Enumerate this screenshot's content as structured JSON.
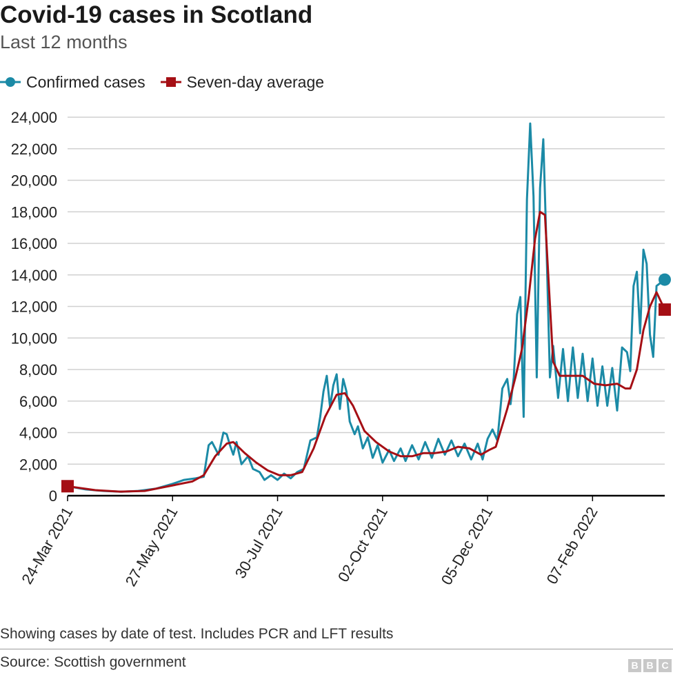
{
  "header": {
    "title": "Covid-19 cases in Scotland",
    "subtitle": "Last 12 months"
  },
  "footer": {
    "note": "Showing cases by date of test. Includes PCR and LFT results",
    "source": "Source: Scottish government",
    "logo_text": "BBC",
    "logo_letters": [
      "B",
      "B",
      "C"
    ]
  },
  "colors": {
    "confirmed": "#1b8aa6",
    "average": "#a50f15",
    "grid": "#d0d0d0",
    "axis": "#000000"
  },
  "chart_data": {
    "type": "line",
    "title": "Covid-19 cases in Scotland",
    "subtitle": "Last 12 months",
    "xlabel": "",
    "ylabel": "",
    "xlim": [
      "2021-03-24",
      "2022-03-23"
    ],
    "ylim": [
      0,
      24000
    ],
    "grid": true,
    "legend_position": "top-left",
    "y_ticks": [
      0,
      2000,
      4000,
      6000,
      8000,
      10000,
      12000,
      14000,
      16000,
      18000,
      20000,
      22000,
      24000
    ],
    "y_tick_labels": [
      "0",
      "2,000",
      "4,000",
      "6,000",
      "8,000",
      "10,000",
      "12,000",
      "14,000",
      "16,000",
      "18,000",
      "20,000",
      "22,000",
      "24,000"
    ],
    "x_ticks": [
      "2021-03-24",
      "2021-05-27",
      "2021-07-30",
      "2021-10-02",
      "2021-12-05",
      "2022-02-07"
    ],
    "x_tick_labels": [
      "24-Mar 2021",
      "27-May 2021",
      "30-Jul 2021",
      "02-Oct 2021",
      "05-Dec 2021",
      "07-Feb 2022"
    ],
    "series": [
      {
        "name": "Confirmed cases",
        "marker": "circle",
        "points": [
          [
            "2021-03-24",
            600
          ],
          [
            "2021-04-04",
            400
          ],
          [
            "2021-04-15",
            300
          ],
          [
            "2021-04-26",
            250
          ],
          [
            "2021-05-06",
            300
          ],
          [
            "2021-05-17",
            450
          ],
          [
            "2021-05-27",
            750
          ],
          [
            "2021-06-03",
            1000
          ],
          [
            "2021-06-10",
            1100
          ],
          [
            "2021-06-15",
            1200
          ],
          [
            "2021-06-18",
            3200
          ],
          [
            "2021-06-20",
            3400
          ],
          [
            "2021-06-24",
            2600
          ],
          [
            "2021-06-27",
            4000
          ],
          [
            "2021-06-29",
            3900
          ],
          [
            "2021-07-01",
            3200
          ],
          [
            "2021-07-03",
            2600
          ],
          [
            "2021-07-05",
            3400
          ],
          [
            "2021-07-08",
            2000
          ],
          [
            "2021-07-12",
            2500
          ],
          [
            "2021-07-15",
            1700
          ],
          [
            "2021-07-19",
            1500
          ],
          [
            "2021-07-22",
            1000
          ],
          [
            "2021-07-26",
            1300
          ],
          [
            "2021-07-30",
            1000
          ],
          [
            "2021-08-03",
            1400
          ],
          [
            "2021-08-07",
            1100
          ],
          [
            "2021-08-11",
            1500
          ],
          [
            "2021-08-15",
            1700
          ],
          [
            "2021-08-19",
            3500
          ],
          [
            "2021-08-23",
            3700
          ],
          [
            "2021-08-25",
            5000
          ],
          [
            "2021-08-27",
            6600
          ],
          [
            "2021-08-29",
            7600
          ],
          [
            "2021-08-31",
            5600
          ],
          [
            "2021-09-02",
            7000
          ],
          [
            "2021-09-04",
            7700
          ],
          [
            "2021-09-06",
            5500
          ],
          [
            "2021-09-08",
            7400
          ],
          [
            "2021-09-10",
            6600
          ],
          [
            "2021-09-12",
            4700
          ],
          [
            "2021-09-15",
            3900
          ],
          [
            "2021-09-17",
            4400
          ],
          [
            "2021-09-20",
            3000
          ],
          [
            "2021-09-23",
            3700
          ],
          [
            "2021-09-26",
            2400
          ],
          [
            "2021-09-29",
            3200
          ],
          [
            "2021-10-02",
            2100
          ],
          [
            "2021-10-06",
            2900
          ],
          [
            "2021-10-09",
            2200
          ],
          [
            "2021-10-13",
            3000
          ],
          [
            "2021-10-16",
            2200
          ],
          [
            "2021-10-20",
            3200
          ],
          [
            "2021-10-24",
            2300
          ],
          [
            "2021-10-28",
            3400
          ],
          [
            "2021-11-01",
            2400
          ],
          [
            "2021-11-05",
            3600
          ],
          [
            "2021-11-09",
            2600
          ],
          [
            "2021-11-13",
            3500
          ],
          [
            "2021-11-17",
            2500
          ],
          [
            "2021-11-21",
            3300
          ],
          [
            "2021-11-25",
            2300
          ],
          [
            "2021-11-29",
            3300
          ],
          [
            "2021-12-02",
            2300
          ],
          [
            "2021-12-05",
            3600
          ],
          [
            "2021-12-08",
            4200
          ],
          [
            "2021-12-11",
            3500
          ],
          [
            "2021-12-14",
            6800
          ],
          [
            "2021-12-17",
            7400
          ],
          [
            "2021-12-19",
            5800
          ],
          [
            "2021-12-21",
            7500
          ],
          [
            "2021-12-23",
            11500
          ],
          [
            "2021-12-25",
            12600
          ],
          [
            "2021-12-27",
            5000
          ],
          [
            "2021-12-29",
            18800
          ],
          [
            "2021-12-31",
            23600
          ],
          [
            "2022-01-02",
            19000
          ],
          [
            "2022-01-04",
            7500
          ],
          [
            "2022-01-06",
            19500
          ],
          [
            "2022-01-08",
            22600
          ],
          [
            "2022-01-10",
            15500
          ],
          [
            "2022-01-12",
            7500
          ],
          [
            "2022-01-14",
            9500
          ],
          [
            "2022-01-17",
            6200
          ],
          [
            "2022-01-20",
            9300
          ],
          [
            "2022-01-23",
            6000
          ],
          [
            "2022-01-26",
            9400
          ],
          [
            "2022-01-29",
            6200
          ],
          [
            "2022-02-01",
            9000
          ],
          [
            "2022-02-04",
            6000
          ],
          [
            "2022-02-07",
            8700
          ],
          [
            "2022-02-10",
            5700
          ],
          [
            "2022-02-13",
            8200
          ],
          [
            "2022-02-16",
            5700
          ],
          [
            "2022-02-19",
            8100
          ],
          [
            "2022-02-22",
            5400
          ],
          [
            "2022-02-25",
            9400
          ],
          [
            "2022-02-28",
            9100
          ],
          [
            "2022-03-02",
            7900
          ],
          [
            "2022-03-04",
            13300
          ],
          [
            "2022-03-06",
            14200
          ],
          [
            "2022-03-08",
            10300
          ],
          [
            "2022-03-10",
            15600
          ],
          [
            "2022-03-12",
            14700
          ],
          [
            "2022-03-14",
            10200
          ],
          [
            "2022-03-16",
            8800
          ],
          [
            "2022-03-18",
            13300
          ],
          [
            "2022-03-23",
            13700
          ]
        ]
      },
      {
        "name": "Seven-day average",
        "marker": "square",
        "points": [
          [
            "2021-03-24",
            600
          ],
          [
            "2021-04-10",
            350
          ],
          [
            "2021-04-25",
            260
          ],
          [
            "2021-05-10",
            300
          ],
          [
            "2021-05-27",
            650
          ],
          [
            "2021-06-08",
            900
          ],
          [
            "2021-06-15",
            1300
          ],
          [
            "2021-06-22",
            2500
          ],
          [
            "2021-06-29",
            3300
          ],
          [
            "2021-07-03",
            3400
          ],
          [
            "2021-07-10",
            2700
          ],
          [
            "2021-07-17",
            2100
          ],
          [
            "2021-07-24",
            1600
          ],
          [
            "2021-07-31",
            1300
          ],
          [
            "2021-08-07",
            1300
          ],
          [
            "2021-08-14",
            1500
          ],
          [
            "2021-08-21",
            3000
          ],
          [
            "2021-08-28",
            5000
          ],
          [
            "2021-09-04",
            6400
          ],
          [
            "2021-09-09",
            6500
          ],
          [
            "2021-09-14",
            5700
          ],
          [
            "2021-09-21",
            4100
          ],
          [
            "2021-09-28",
            3400
          ],
          [
            "2021-10-06",
            2800
          ],
          [
            "2021-10-13",
            2500
          ],
          [
            "2021-10-20",
            2500
          ],
          [
            "2021-10-27",
            2700
          ],
          [
            "2021-11-03",
            2700
          ],
          [
            "2021-11-10",
            2800
          ],
          [
            "2021-11-17",
            3100
          ],
          [
            "2021-11-24",
            3000
          ],
          [
            "2021-12-01",
            2600
          ],
          [
            "2021-12-06",
            2900
          ],
          [
            "2021-12-10",
            3100
          ],
          [
            "2021-12-17",
            5500
          ],
          [
            "2021-12-22",
            7500
          ],
          [
            "2021-12-26",
            9300
          ],
          [
            "2021-12-30",
            12500
          ],
          [
            "2022-01-03",
            16300
          ],
          [
            "2022-01-06",
            18000
          ],
          [
            "2022-01-09",
            17800
          ],
          [
            "2022-01-11",
            14000
          ],
          [
            "2022-01-14",
            8500
          ],
          [
            "2022-01-18",
            7600
          ],
          [
            "2022-01-25",
            7600
          ],
          [
            "2022-02-01",
            7600
          ],
          [
            "2022-02-08",
            7100
          ],
          [
            "2022-02-15",
            7000
          ],
          [
            "2022-02-22",
            7100
          ],
          [
            "2022-02-27",
            6800
          ],
          [
            "2022-03-02",
            6800
          ],
          [
            "2022-03-06",
            8000
          ],
          [
            "2022-03-10",
            10500
          ],
          [
            "2022-03-14",
            12000
          ],
          [
            "2022-03-18",
            12900
          ],
          [
            "2022-03-23",
            11800
          ]
        ]
      }
    ]
  }
}
